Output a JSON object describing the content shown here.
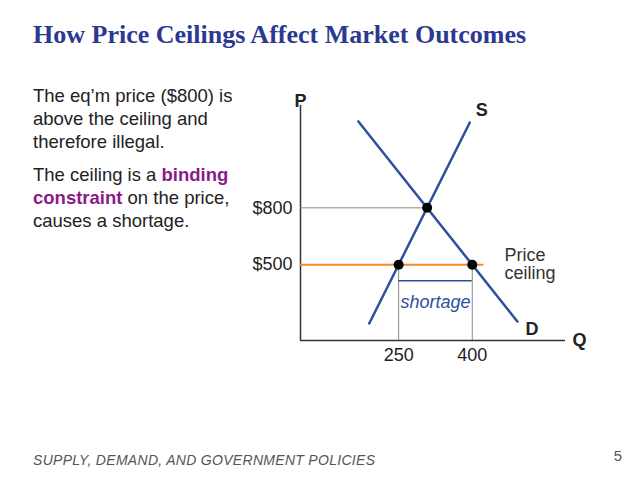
{
  "chart_data": {
    "type": "line",
    "title": "How Price Ceilings Affect Market Outcomes",
    "text": [
      [
        {
          "text": "The eq’m price ($800) is above the ceiling and therefore illegal."
        }
      ],
      [
        {
          "text": "The ceiling is a "
        },
        {
          "text": "binding constraint",
          "bold": true
        },
        {
          "text": " on the price, causes a shortage."
        }
      ]
    ],
    "footer": "SUPPLY, DEMAND, AND GOVERNMENT POLICIES",
    "page_number": "5",
    "x_label": "Q",
    "y_label": "P",
    "xlim": [
      50,
      590
    ],
    "ylim": [
      100,
      1340
    ],
    "xticks": [
      250,
      400
    ],
    "yticks": [
      {
        "value": 500,
        "label": "$500"
      },
      {
        "value": 800,
        "label": "$800"
      }
    ],
    "grid": false,
    "series": [
      {
        "name": "S",
        "color": "#2e4f9c",
        "x": [
          190,
          395
        ],
        "values": [
          190,
          1250
        ]
      },
      {
        "name": "D",
        "color": "#2e4f9c",
        "x": [
          168,
          492
        ],
        "values": [
          1256,
          200
        ]
      },
      {
        "name": "Price ceiling",
        "color": "#f0892b",
        "x": [
          50,
          421
        ],
        "values": [
          500,
          500
        ]
      }
    ],
    "equilibrium": {
      "x": 308,
      "y": 800
    },
    "quantity_supplied": 250,
    "quantity_demanded": 400,
    "price_ceiling": 500,
    "shortage_label": "shortage"
  }
}
